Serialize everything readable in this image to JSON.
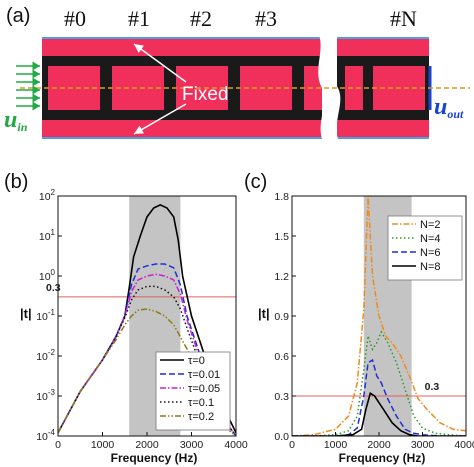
{
  "figure": {
    "schematic": {
      "panel_label": "(a)",
      "unit_labels": [
        "#0",
        "#1",
        "#2",
        "#3",
        "#N"
      ],
      "fixed_label": "Fixed",
      "u_in_main": "u",
      "u_in_sub": "in",
      "u_out_main": "u",
      "u_out_sub": "out"
    }
  },
  "chart_data": [
    {
      "type": "line",
      "panel_label": "(b)",
      "xlabel": "Frequency (Hz)",
      "ylabel": "|t|",
      "xlim": [
        0,
        4000
      ],
      "ylim": [
        0.0001,
        100
      ],
      "yscale": "log",
      "x_ticks": [
        "0",
        "1000",
        "2000",
        "3000",
        "4000"
      ],
      "y_ticks": [
        "10-4",
        "10-3",
        "10-2",
        "10-1",
        "100",
        "101",
        "102"
      ],
      "band_gap_shaded": [
        1600,
        2750
      ],
      "reference_line": {
        "value": 0.3,
        "label": "0.3",
        "color": "#e06060"
      },
      "legend_position": "lower-right",
      "series": [
        {
          "name": "τ=0",
          "color": "#000000",
          "dash": "solid",
          "x": [
            0,
            500,
            1000,
            1300,
            1500,
            1600,
            1700,
            1850,
            2000,
            2150,
            2300,
            2450,
            2600,
            2700,
            2800,
            3000,
            3300,
            3600,
            4000
          ],
          "y": [
            0.00012,
            0.0013,
            0.008,
            0.03,
            0.1,
            0.5,
            3,
            10,
            30,
            50,
            60,
            50,
            30,
            8,
            1,
            0.1,
            0.01,
            0.001,
            0.00012
          ]
        },
        {
          "name": "τ=0.01",
          "color": "#1f2fd6",
          "dash": "dash",
          "x": [
            0,
            500,
            1000,
            1300,
            1500,
            1650,
            1800,
            2000,
            2200,
            2400,
            2600,
            2750,
            2900,
            3200,
            3500,
            3800,
            4000
          ],
          "y": [
            0.00012,
            0.0013,
            0.008,
            0.03,
            0.1,
            0.6,
            1.5,
            1.8,
            2,
            2,
            1.6,
            0.6,
            0.1,
            0.01,
            0.001,
            0.0002,
            0.0001
          ]
        },
        {
          "name": "τ=0.05",
          "color": "#cc22cc",
          "dash": "dashdot",
          "x": [
            0,
            500,
            1000,
            1300,
            1500,
            1650,
            1800,
            2000,
            2200,
            2400,
            2600,
            2750,
            2900,
            3200,
            3500,
            3800,
            4000
          ],
          "y": [
            0.00012,
            0.0013,
            0.008,
            0.03,
            0.1,
            0.4,
            0.8,
            1.0,
            1.1,
            1.0,
            0.8,
            0.35,
            0.08,
            0.008,
            0.0009,
            0.0002,
            0.0001
          ]
        },
        {
          "name": "τ=0.1",
          "color": "#111111",
          "dash": "dot",
          "x": [
            0,
            500,
            1000,
            1300,
            1500,
            1650,
            1800,
            2000,
            2200,
            2400,
            2600,
            2750,
            2900,
            3200,
            3500,
            3800,
            4000
          ],
          "y": [
            0.00012,
            0.0013,
            0.008,
            0.03,
            0.09,
            0.25,
            0.45,
            0.55,
            0.55,
            0.45,
            0.3,
            0.15,
            0.05,
            0.006,
            0.0008,
            0.0002,
            0.0001
          ]
        },
        {
          "name": "τ=0.2",
          "color": "#8a7a1a",
          "dash": "dashdotdot",
          "x": [
            0,
            500,
            1000,
            1300,
            1500,
            1650,
            1800,
            2000,
            2200,
            2400,
            2600,
            2750,
            2900,
            3200,
            3500,
            3800,
            4000
          ],
          "y": [
            0.00012,
            0.0013,
            0.008,
            0.025,
            0.06,
            0.1,
            0.14,
            0.15,
            0.13,
            0.1,
            0.06,
            0.03,
            0.015,
            0.003,
            0.0006,
            0.00015,
            0.0001
          ]
        }
      ]
    },
    {
      "type": "line",
      "panel_label": "(c)",
      "xlabel": "Frequency (Hz)",
      "ylabel": "|t|",
      "xlim": [
        0,
        4000
      ],
      "ylim": [
        0,
        1.8
      ],
      "yscale": "linear",
      "x_ticks": [
        "0",
        "1000",
        "2000",
        "3000",
        "4000"
      ],
      "y_ticks": [
        "0.0",
        "0.3",
        "0.6",
        "0.9",
        "1.2",
        "1.5",
        "1.8"
      ],
      "band_gap_shaded": [
        1650,
        2750
      ],
      "reference_line": {
        "value": 0.3,
        "label": "0.3",
        "color": "#e06060"
      },
      "legend_position": "top-right",
      "series": [
        {
          "name": "N=2",
          "color": "#f08a20",
          "dash": "dashdot",
          "x": [
            0,
            500,
            1000,
            1300,
            1500,
            1650,
            1750,
            1850,
            2000,
            2150,
            2300,
            2500,
            2700,
            2900,
            3100,
            3400,
            3700,
            4000
          ],
          "y": [
            0.0,
            0.01,
            0.05,
            0.15,
            0.4,
            0.95,
            1.8,
            1.2,
            0.9,
            0.75,
            0.7,
            0.6,
            0.45,
            0.28,
            0.2,
            0.1,
            0.05,
            0.04
          ]
        },
        {
          "name": "N=4",
          "color": "#2a9a2a",
          "dash": "dot",
          "x": [
            0,
            500,
            1000,
            1300,
            1500,
            1650,
            1750,
            1850,
            1950,
            2050,
            2200,
            2400,
            2600,
            2800,
            3000,
            3300,
            3600,
            4000
          ],
          "y": [
            0.0,
            0.0,
            0.01,
            0.04,
            0.15,
            0.5,
            0.75,
            0.65,
            0.7,
            0.78,
            0.7,
            0.55,
            0.35,
            0.15,
            0.06,
            0.02,
            0.01,
            0.0
          ]
        },
        {
          "name": "N=6",
          "color": "#1f2fd6",
          "dash": "dash",
          "x": [
            0,
            1000,
            1300,
            1500,
            1650,
            1750,
            1850,
            1950,
            2050,
            2200,
            2400,
            2600,
            2800,
            3000,
            3400,
            4000
          ],
          "y": [
            0.0,
            0.0,
            0.01,
            0.06,
            0.3,
            0.55,
            0.57,
            0.45,
            0.4,
            0.28,
            0.15,
            0.05,
            0.02,
            0.01,
            0.0,
            0.0
          ]
        },
        {
          "name": "N=8",
          "color": "#000000",
          "dash": "solid",
          "x": [
            0,
            1000,
            1400,
            1600,
            1700,
            1800,
            1900,
            2000,
            2100,
            2300,
            2500,
            2700,
            2900,
            3200,
            4000
          ],
          "y": [
            0.0,
            0.0,
            0.01,
            0.05,
            0.2,
            0.32,
            0.3,
            0.25,
            0.2,
            0.1,
            0.04,
            0.01,
            0.0,
            0.0,
            0.0
          ]
        }
      ]
    }
  ]
}
